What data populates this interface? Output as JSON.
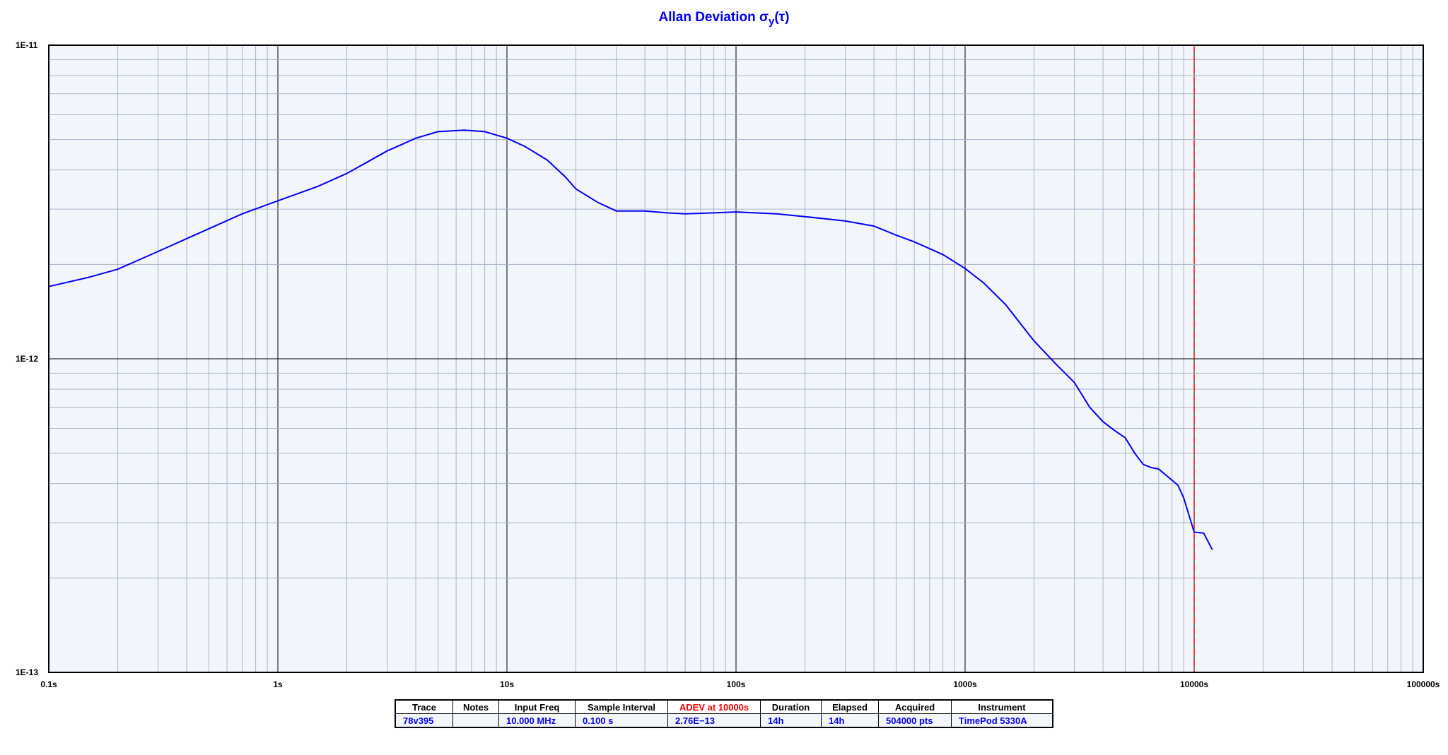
{
  "chart_data": {
    "type": "line",
    "title": "Allan Deviation σy(τ)",
    "title_main": "Allan Deviation σ",
    "title_sub": "y",
    "title_tail": "(τ)",
    "x_scale": "log",
    "y_scale": "log",
    "xlim": [
      0.1,
      100000
    ],
    "ylim": [
      1e-13,
      1e-11
    ],
    "x_tick_labels": [
      "0.1s",
      "1s",
      "10s",
      "100s",
      "1000s",
      "10000s",
      "100000s"
    ],
    "y_tick_labels": [
      "1E-11",
      "1E-12",
      "1E-13"
    ],
    "grid": true,
    "colors": {
      "trace": "#0000ff",
      "marker": "#ff0000",
      "background": "#f2f6fb",
      "major_grid": "#000000",
      "minor_grid": "#a8b4c8"
    },
    "marker_tau": 10000,
    "series": [
      {
        "x": [
          0.1,
          0.15,
          0.2,
          0.3,
          0.5,
          0.7,
          1,
          1.5,
          2,
          3,
          4,
          5,
          6.5,
          8,
          10,
          12,
          15,
          18,
          20,
          25,
          30,
          40,
          50,
          60,
          80,
          100,
          150,
          200,
          300,
          400,
          500,
          600,
          800,
          1000,
          1200,
          1500,
          2000,
          2500,
          3000,
          3500,
          4000,
          4500,
          5000,
          5500,
          6000,
          6500,
          7000,
          8000,
          8500,
          9000,
          10000,
          11000,
          12000
        ],
        "y": [
          1.7e-12,
          1.82e-12,
          1.93e-12,
          2.2e-12,
          2.6e-12,
          2.9e-12,
          3.19e-12,
          3.55e-12,
          3.9e-12,
          4.6e-12,
          5.05e-12,
          5.3e-12,
          5.36e-12,
          5.3e-12,
          5.05e-12,
          4.75e-12,
          4.3e-12,
          3.8e-12,
          3.48e-12,
          3.15e-12,
          2.96e-12,
          2.96e-12,
          2.92e-12,
          2.9e-12,
          2.92e-12,
          2.94e-12,
          2.9e-12,
          2.84e-12,
          2.75e-12,
          2.65e-12,
          2.48e-12,
          2.36e-12,
          2.15e-12,
          1.94e-12,
          1.75e-12,
          1.49e-12,
          1.14e-12,
          9.6e-13,
          8.4e-13,
          7e-13,
          6.3e-13,
          5.9e-13,
          5.6e-13,
          5e-13,
          4.6e-13,
          4.5e-13,
          4.45e-13,
          4.1e-13,
          3.95e-13,
          3.6e-13,
          2.8e-13,
          2.78e-13,
          2.46e-13
        ]
      }
    ]
  },
  "table": {
    "headers": [
      "Trace",
      "Notes",
      "Input Freq",
      "Sample Interval",
      "ADEV at 10000s",
      "Duration",
      "Elapsed",
      "Acquired",
      "Instrument"
    ],
    "values": [
      "78v395",
      "",
      "10.000 MHz",
      "0.100 s",
      "2.76E−13",
      "14h",
      "14h",
      "504000 pts",
      "TimePod 5330A"
    ]
  }
}
